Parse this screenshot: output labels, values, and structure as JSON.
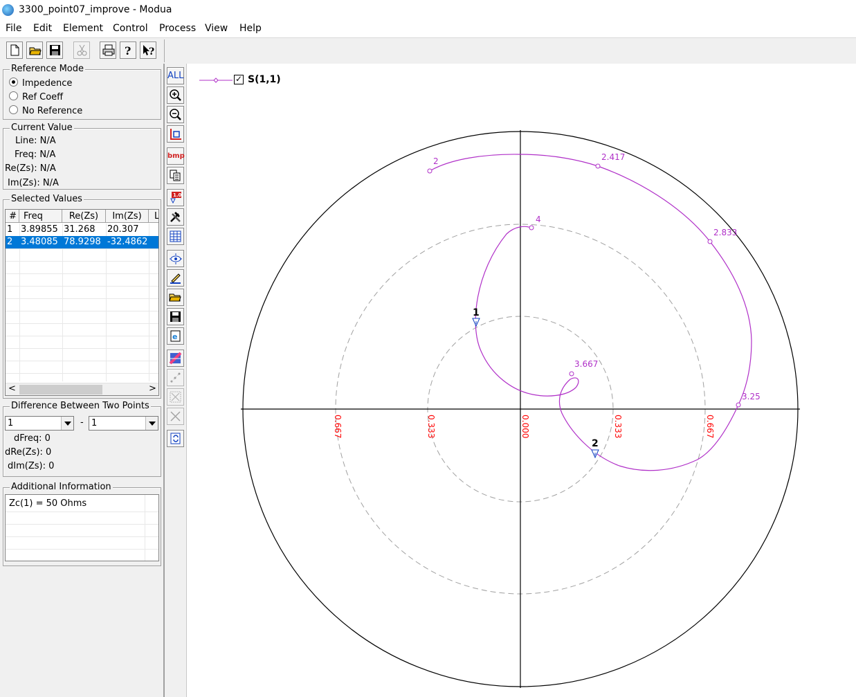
{
  "window": {
    "title": "3300_point07_improve - Modua"
  },
  "menu": [
    "File",
    "Edit",
    "Element",
    "Control",
    "Process",
    "View",
    "Help"
  ],
  "reference_mode": {
    "title": "Reference Mode",
    "options": [
      {
        "label": "Impedence",
        "selected": true
      },
      {
        "label": "Ref Coeff",
        "selected": false
      },
      {
        "label": "No Reference",
        "selected": false
      }
    ]
  },
  "current_value": {
    "title": "Current Value",
    "line_label": "Line:",
    "line_value": "N/A",
    "freq_label": "Freq:",
    "freq_value": "N/A",
    "re_label": "Re(Zs):",
    "re_value": "N/A",
    "im_label": "Im(Zs):",
    "im_value": "N/A"
  },
  "selected_values": {
    "title": "Selected Values",
    "columns": [
      "#",
      "Freq",
      "Re(Zs)",
      "Im(Zs)",
      "L"
    ],
    "rows": [
      {
        "n": "1",
        "freq": "3.89855",
        "re": "31.268",
        "im": "20.307",
        "selected": false
      },
      {
        "n": "2",
        "freq": "3.48085",
        "re": "78.9298",
        "im": "-32.4862",
        "selected": true
      }
    ]
  },
  "difference": {
    "title": "Difference Between Two Points",
    "from": "1",
    "dash": "-",
    "to": "1",
    "dfreq_label": "dFreq:",
    "dfreq_value": "0",
    "dre_label": "dRe(Zs):",
    "dre_value": "0",
    "dim_label": "dIm(Zs):",
    "dim_value": "0"
  },
  "additional": {
    "title": "Additional Information",
    "text": "Zc(1) = 50 Ohms"
  },
  "vtoolbar": {
    "all_label": "ALL",
    "bmp_label": "bmp"
  },
  "colors": {
    "trace": "#b030c8",
    "tick_labels": "#ff0000",
    "selection": "#0078d7"
  },
  "chart_data": {
    "type": "polar",
    "legend": {
      "label": "S(1,1)",
      "checked": true
    },
    "circle_labels": [
      "0.667",
      "0.333",
      "0.000",
      "0.333",
      "0.667"
    ],
    "trace_labels": [
      {
        "text": "2",
        "freq": 2.0
      },
      {
        "text": "2.417",
        "freq": 2.417
      },
      {
        "text": "2.833",
        "freq": 2.833
      },
      {
        "text": "3.25",
        "freq": 3.25
      },
      {
        "text": "3.667",
        "freq": 3.667
      },
      {
        "text": "4",
        "freq": 4.0
      }
    ],
    "markers": [
      {
        "label": "1",
        "freq": 3.89855,
        "re": 31.268,
        "im": 20.307
      },
      {
        "label": "2",
        "freq": 3.48085,
        "re": 78.9298,
        "im": -32.4862
      }
    ],
    "grid": true
  }
}
